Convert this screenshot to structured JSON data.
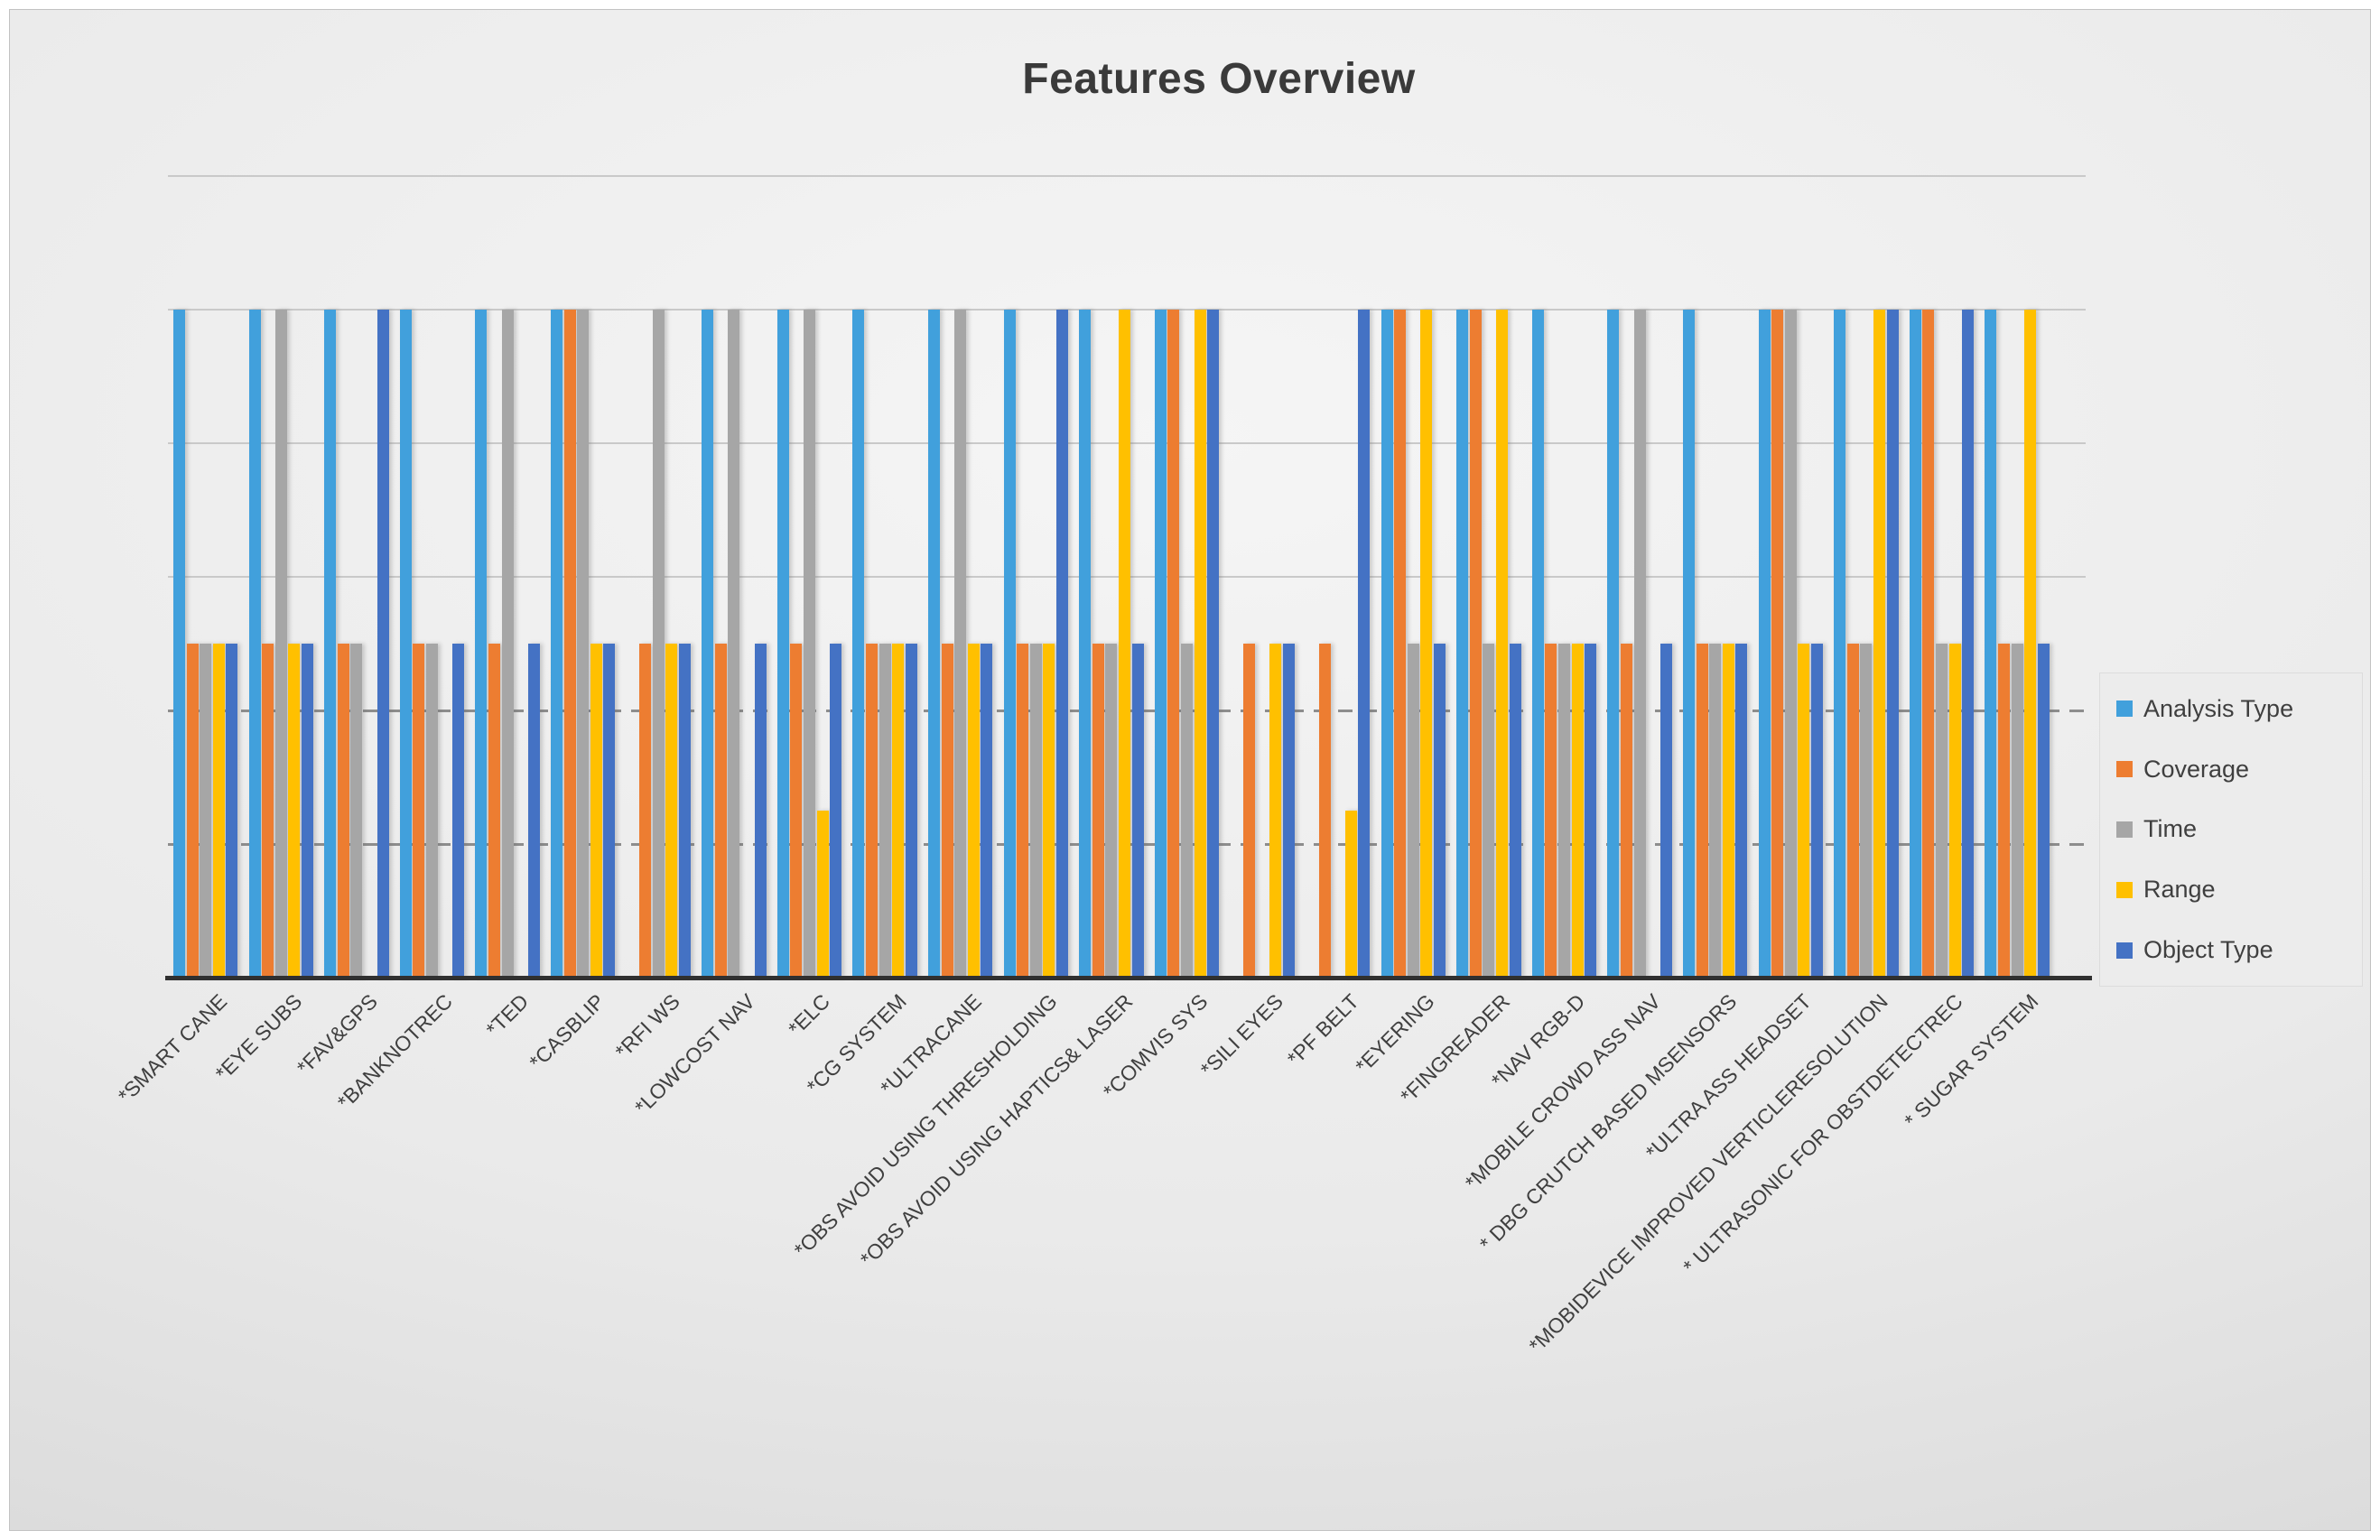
{
  "title": "Features Overview",
  "legend": {
    "items": [
      "Analysis Type",
      "Coverage",
      "Time",
      "Range",
      "Object Type"
    ]
  },
  "chart_data": {
    "type": "bar",
    "title": "Features Overview",
    "categories": [
      "*SMART CANE",
      "*EYE SUBS",
      "*FAV&GPS",
      "*BANKNOTREC",
      "*TED",
      "*CASBLIP",
      "*RFI WS",
      "*LOWCOST NAV",
      "*ELC",
      "*CG SYSTEM",
      "*ULTRACANE",
      "*OBS AVOID USING THRESHOLDING",
      "*OBS AVOID USING HAPTICS& LASER",
      "*COMVIS SYS",
      "*SILI EYES",
      "*PF BELT",
      "*EYERING",
      "*FINGREADER",
      "*NAV RGB-D",
      "*MOBILE CROWD ASS NAV",
      "* DBG CRUTCH BASED MSENSORS",
      "*ULTRA ASS HEADSET",
      "*MOBIDEVICE IMPROVED VERTICLERESOLUTION",
      "* ULTRASONIC FOR OBSTDETECTREC",
      "* SUGAR SYSTEM"
    ],
    "series": [
      {
        "name": "Analysis Type",
        "color": "#41A0DC",
        "values": [
          2,
          2,
          2,
          2,
          2,
          2,
          0,
          2,
          2,
          2,
          2,
          2,
          2,
          2,
          0,
          0,
          2,
          2,
          2,
          2,
          2,
          2,
          2,
          2,
          2
        ]
      },
      {
        "name": "Coverage",
        "color": "#ED7D31",
        "values": [
          1,
          1,
          1,
          1,
          1,
          2,
          1,
          1,
          1,
          1,
          1,
          1,
          1,
          2,
          1,
          1,
          2,
          2,
          1,
          1,
          1,
          2,
          1,
          2,
          1
        ]
      },
      {
        "name": "Time",
        "color": "#A6A6A6",
        "values": [
          1,
          2,
          1,
          1,
          2,
          2,
          2,
          2,
          2,
          1,
          2,
          1,
          1,
          1,
          0,
          0,
          1,
          1,
          1,
          2,
          1,
          2,
          1,
          1,
          1
        ]
      },
      {
        "name": "Range",
        "color": "#FFC000",
        "values": [
          1,
          1,
          0,
          0,
          0,
          1,
          1,
          0,
          0.5,
          1,
          1,
          1,
          2,
          2,
          1,
          0.5,
          2,
          2,
          1,
          0,
          1,
          1,
          2,
          1,
          2
        ]
      },
      {
        "name": "Object Type",
        "color": "#4472C4",
        "values": [
          1,
          1,
          2,
          1,
          1,
          1,
          1,
          1,
          1,
          1,
          1,
          2,
          1,
          2,
          1,
          2,
          1,
          1,
          1,
          1,
          1,
          1,
          2,
          2,
          1
        ]
      }
    ],
    "ylim": [
      0,
      2.4
    ],
    "gridline_step": 0.4,
    "y_axis_labels_visible": false,
    "grid": true,
    "legend_position": "right"
  }
}
